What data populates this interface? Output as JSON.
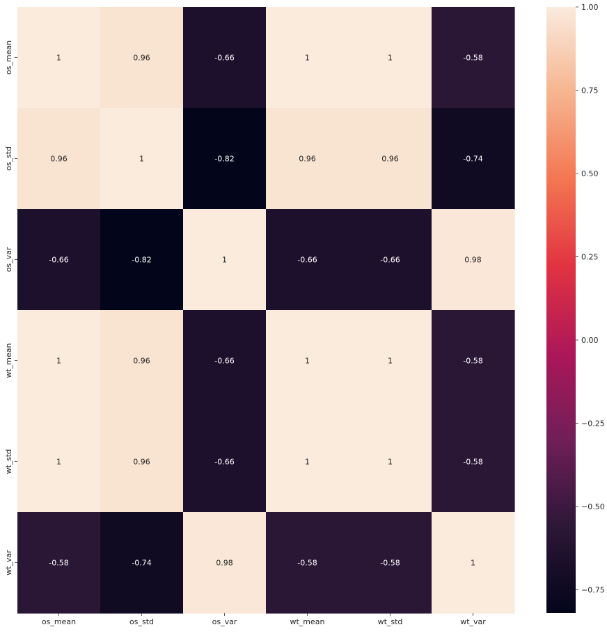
{
  "chart_data": {
    "type": "heatmap",
    "x_labels": [
      "os_mean",
      "os_std",
      "os_var",
      "wt_mean",
      "wt_std",
      "wt_var"
    ],
    "y_labels": [
      "os_mean",
      "os_std",
      "os_var",
      "wt_mean",
      "wt_std",
      "wt_var"
    ],
    "values": [
      [
        1.0,
        0.96,
        -0.66,
        1.0,
        1.0,
        -0.58
      ],
      [
        0.96,
        1.0,
        -0.82,
        0.96,
        0.96,
        -0.74
      ],
      [
        -0.66,
        -0.82,
        1.0,
        -0.66,
        -0.66,
        0.98
      ],
      [
        1.0,
        0.96,
        -0.66,
        1.0,
        1.0,
        -0.58
      ],
      [
        1.0,
        0.96,
        -0.66,
        1.0,
        1.0,
        -0.58
      ],
      [
        -0.58,
        -0.74,
        0.98,
        -0.58,
        -0.58,
        1.0
      ]
    ],
    "annotations": [
      [
        "1",
        "0.96",
        "-0.66",
        "1",
        "1",
        "-0.58"
      ],
      [
        "0.96",
        "1",
        "-0.82",
        "0.96",
        "0.96",
        "-0.74"
      ],
      [
        "-0.66",
        "-0.82",
        "1",
        "-0.66",
        "-0.66",
        "0.98"
      ],
      [
        "1",
        "0.96",
        "-0.66",
        "1",
        "1",
        "-0.58"
      ],
      [
        "1",
        "0.96",
        "-0.66",
        "1",
        "1",
        "-0.58"
      ],
      [
        "-0.58",
        "-0.74",
        "0.98",
        "-0.58",
        "-0.58",
        "1"
      ]
    ],
    "colorbar": {
      "range": [
        -0.82,
        1.0
      ],
      "ticks": [
        1.0,
        0.75,
        0.5,
        0.25,
        0.0,
        -0.25,
        -0.5,
        -0.75
      ],
      "tick_labels": [
        "1.00",
        "0.75",
        "0.50",
        "0.25",
        "0.00",
        "−0.25",
        "−0.50",
        "−0.75"
      ],
      "colormap": "rocket",
      "color_stops": [
        "#03051a",
        "#2d1737",
        "#701f57",
        "#ad1759",
        "#e13342",
        "#f37651",
        "#f6b48f",
        "#faebdd"
      ]
    },
    "title": "",
    "xlabel": "",
    "ylabel": "",
    "grid": false,
    "legend": "colorbar-right"
  }
}
